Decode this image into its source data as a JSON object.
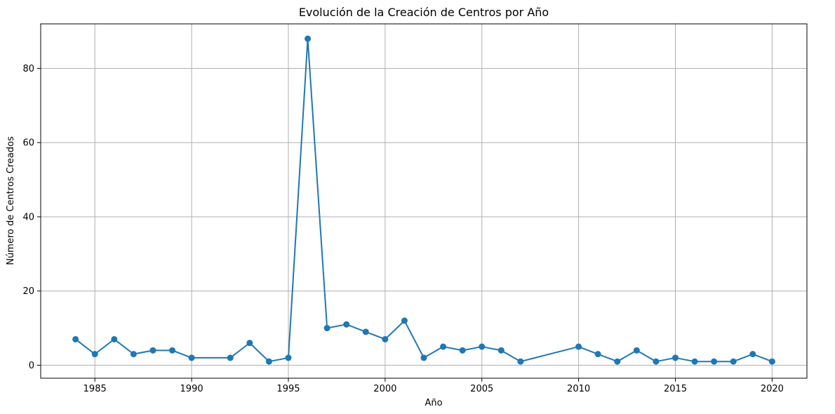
{
  "chart_data": {
    "type": "line",
    "title": "Evolución de la Creación de Centros por Año",
    "xlabel": "Año",
    "ylabel": "Número de Centros Creados",
    "xlim": [
      1982.2,
      2021.8
    ],
    "ylim": [
      -3.5,
      92
    ],
    "xticks": [
      1985,
      1990,
      1995,
      2000,
      2005,
      2010,
      2015,
      2020
    ],
    "yticks": [
      0,
      20,
      40,
      60,
      80
    ],
    "grid": true,
    "series": [
      {
        "color": "#1f77b4",
        "x": [
          1984,
          1985,
          1986,
          1987,
          1988,
          1989,
          1990,
          1992,
          1993,
          1994,
          1995,
          1996,
          1997,
          1998,
          1999,
          2000,
          2001,
          2002,
          2003,
          2004,
          2005,
          2006,
          2007,
          2010,
          2011,
          2012,
          2013,
          2014,
          2015,
          2016,
          2017,
          2018,
          2019,
          2020
        ],
        "values": [
          7,
          3,
          7,
          3,
          4,
          4,
          2,
          2,
          6,
          1,
          2,
          88,
          10,
          11,
          9,
          7,
          12,
          2,
          5,
          4,
          5,
          4,
          1,
          5,
          3,
          1,
          4,
          1,
          2,
          1,
          1,
          1,
          3,
          1
        ]
      }
    ]
  }
}
